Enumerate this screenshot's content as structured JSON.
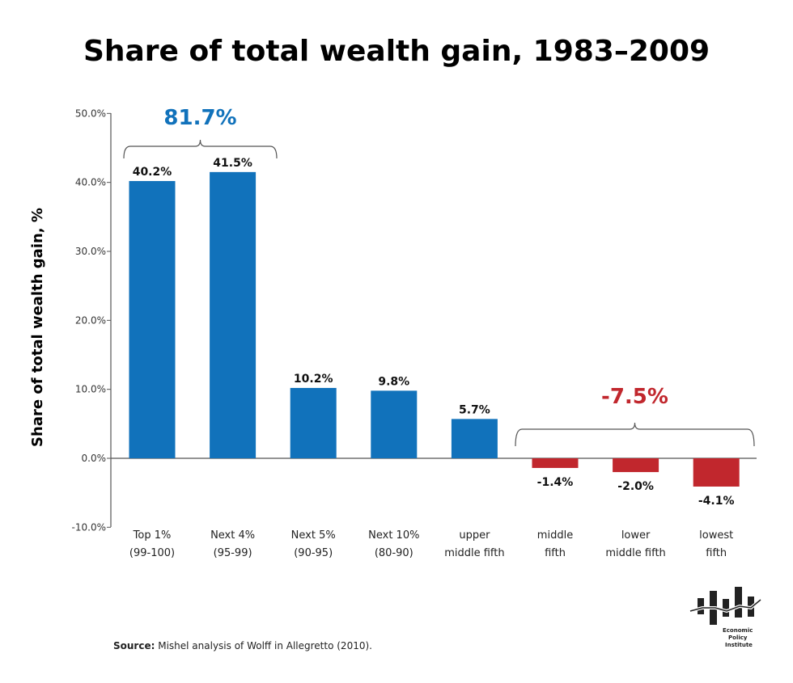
{
  "chart_data": {
    "type": "bar",
    "title": "Share of total wealth gain, 1983–2009",
    "ylabel": "Share of total wealth gain, %",
    "xlabel": "",
    "ylim": [
      -10,
      50
    ],
    "yticks": [
      "-10.0%",
      "0.0%",
      "10.0%",
      "20.0%",
      "30.0%",
      "40.0%",
      "50.0%"
    ],
    "grid": false,
    "categories": [
      [
        "Top 1%",
        "(99-100)"
      ],
      [
        "Next 4%",
        "(95-99)"
      ],
      [
        "Next 5%",
        "(90-95)"
      ],
      [
        "Next 10%",
        "(80-90)"
      ],
      [
        "upper",
        "middle fifth"
      ],
      [
        "middle",
        "fifth"
      ],
      [
        "lower",
        "middle fifth"
      ],
      [
        "lowest",
        "fifth"
      ]
    ],
    "values": [
      40.2,
      41.5,
      10.2,
      9.8,
      5.7,
      -1.4,
      -2.0,
      -4.1
    ],
    "data_labels": [
      "40.2%",
      "41.5%",
      "10.2%",
      "9.8%",
      "5.7%",
      "-1.4%",
      "-2.0%",
      "-4.1%"
    ],
    "colors": {
      "positive": "#1172bb",
      "negative": "#c1272d"
    },
    "annotations": [
      {
        "text": "81.7%",
        "spans": [
          0,
          1
        ],
        "color": "#1172bb"
      },
      {
        "text": "-7.5%",
        "spans": [
          5,
          7
        ],
        "color": "#c1272d"
      }
    ]
  },
  "source": {
    "label": "Source:",
    "text": " Mishel analysis of Wolff in Allegretto  (2010)."
  },
  "logo": {
    "text": [
      "Economic",
      "Policy",
      "Institute"
    ]
  }
}
